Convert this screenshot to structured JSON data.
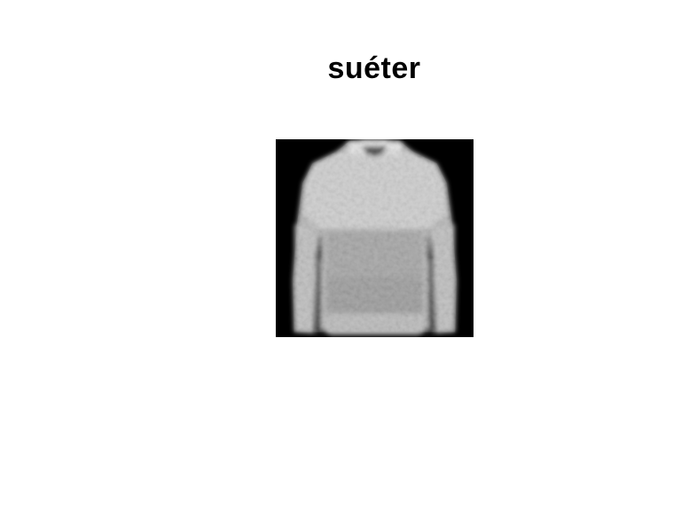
{
  "title": "suéter"
}
